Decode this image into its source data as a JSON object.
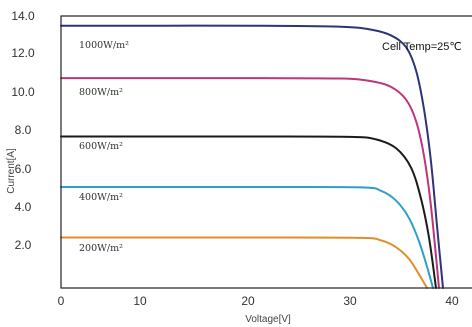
{
  "chart_data": {
    "type": "line",
    "title": "",
    "xlabel": "Voltage[V]",
    "ylabel": "Current[A]",
    "xlim": [
      0,
      42
    ],
    "ylim": [
      0,
      14
    ],
    "x_ticks": [
      "0",
      "10",
      "20",
      "30",
      "40"
    ],
    "y_ticks": [
      "2.0",
      "4.0",
      "6.0",
      "8.0",
      "10.0",
      "12.0",
      "14.0"
    ],
    "annotation": "Cell Temp=25℃",
    "grid": false,
    "series": [
      {
        "name": "1000W/m²",
        "color": "#2c3577",
        "x": [
          0,
          10,
          20,
          28,
          31,
          33,
          34.5,
          35.5,
          36.3,
          37,
          37.6,
          38.2
        ],
        "y": [
          13.5,
          13.5,
          13.5,
          13.45,
          13.3,
          13.0,
          12.4,
          11.2,
          9.2,
          6.5,
          3.2,
          0
        ]
      },
      {
        "name": "800W/m²",
        "color": "#c0347a",
        "x": [
          0,
          10,
          20,
          28,
          31,
          33,
          34.5,
          35.5,
          36.3,
          37,
          37.8
        ],
        "y": [
          10.8,
          10.8,
          10.8,
          10.78,
          10.65,
          10.35,
          9.7,
          8.6,
          6.8,
          4.2,
          0
        ]
      },
      {
        "name": "600W/m²",
        "color": "#1a1a1a",
        "x": [
          0,
          10,
          20,
          29,
          31.5,
          33.5,
          35,
          36,
          36.8,
          37.5
        ],
        "y": [
          7.8,
          7.8,
          7.8,
          7.78,
          7.65,
          7.2,
          6.2,
          4.6,
          2.6,
          0
        ]
      },
      {
        "name": "400W/m²",
        "color": "#2e9fcb",
        "x": [
          0,
          10,
          20,
          30,
          32,
          33.5,
          34.8,
          35.8,
          36.6,
          37.2
        ],
        "y": [
          5.2,
          5.2,
          5.2,
          5.18,
          5.0,
          4.5,
          3.6,
          2.4,
          1.1,
          0
        ]
      },
      {
        "name": "200W/m²",
        "color": "#e08e2a",
        "x": [
          0,
          10,
          20,
          30,
          32,
          33.5,
          34.8,
          35.8,
          36.6
        ],
        "y": [
          2.6,
          2.6,
          2.6,
          2.58,
          2.45,
          2.1,
          1.5,
          0.7,
          0
        ]
      }
    ]
  }
}
